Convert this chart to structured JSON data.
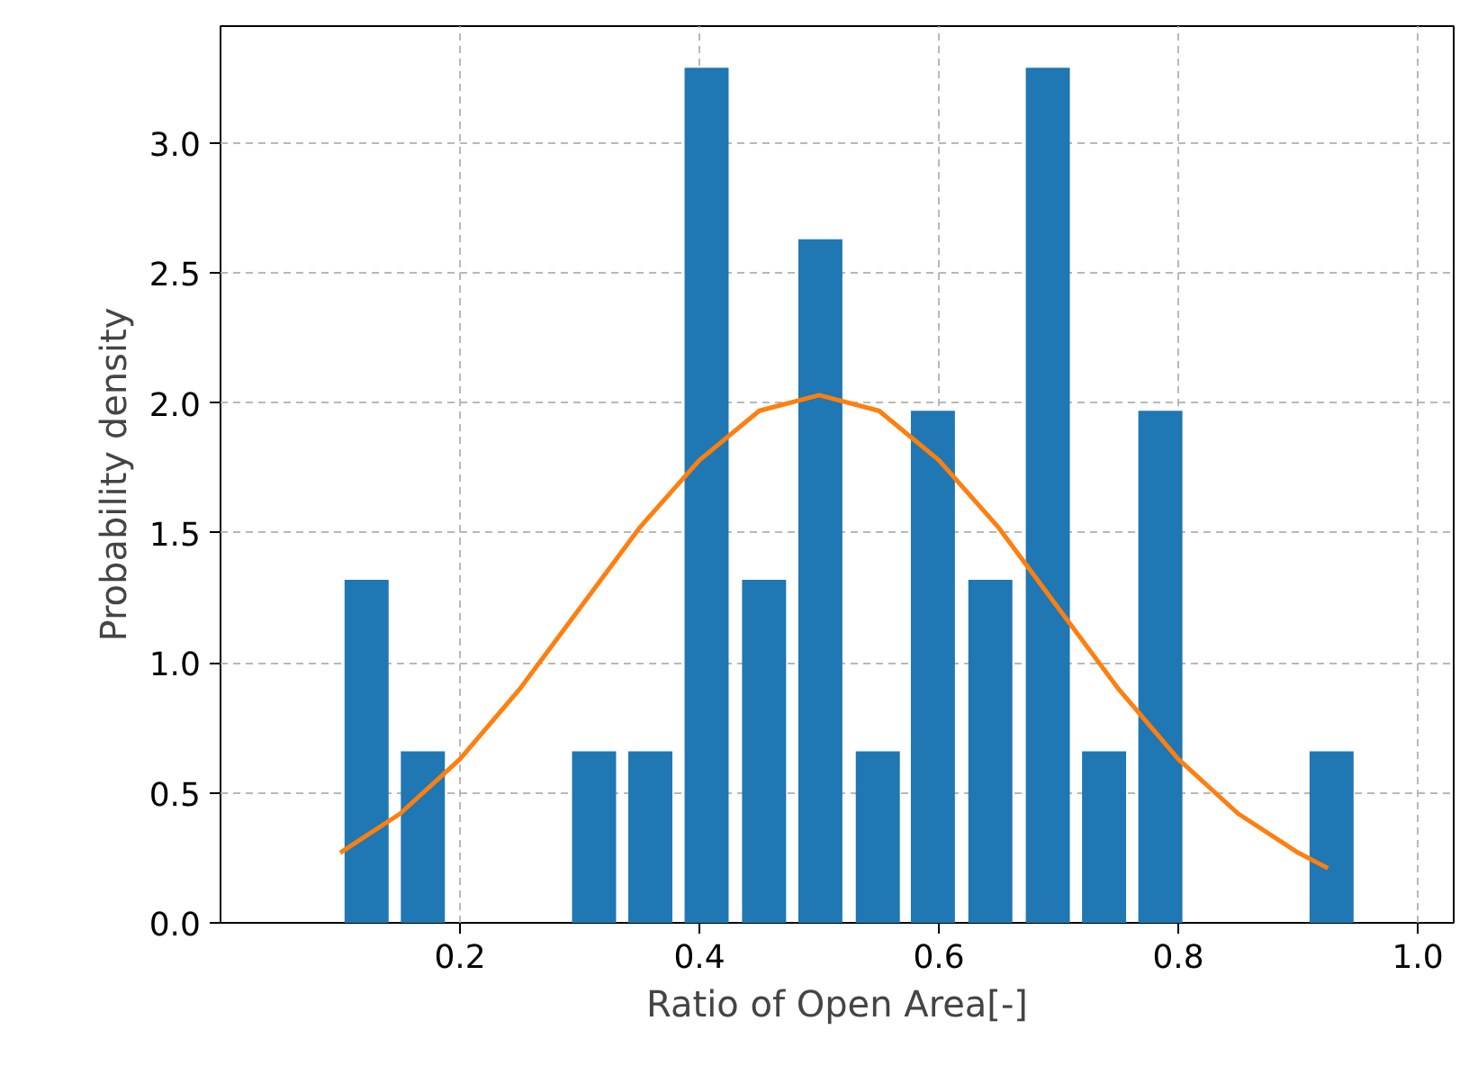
{
  "chart_data": {
    "type": "bar",
    "xlabel": "Ratio of Open Area[-]",
    "ylabel": "Probability density",
    "series": [
      {
        "color": "#1f77b4",
        "x": [
          0.122,
          0.169,
          0.312,
          0.359,
          0.406,
          0.454,
          0.501,
          0.549,
          0.595,
          0.643,
          0.691,
          0.738,
          0.785,
          0.928
        ],
        "values": [
          1.32,
          0.66,
          0.66,
          0.66,
          3.29,
          1.32,
          2.63,
          0.66,
          1.97,
          1.32,
          3.29,
          0.66,
          1.97,
          0.66
        ]
      },
      {
        "type": "line",
        "color": "#ff7f0e",
        "x": [
          0.1,
          0.15,
          0.2,
          0.25,
          0.3,
          0.35,
          0.4,
          0.45,
          0.5,
          0.55,
          0.6,
          0.65,
          0.7,
          0.75,
          0.8,
          0.85,
          0.9,
          0.925
        ],
        "values": [
          0.27,
          0.42,
          0.63,
          0.9,
          1.21,
          1.52,
          1.78,
          1.97,
          2.03,
          1.97,
          1.78,
          1.52,
          1.21,
          0.9,
          0.63,
          0.42,
          0.27,
          0.21
        ]
      }
    ],
    "xlim": [
      0.0,
      1.03
    ],
    "ylim": [
      0,
      3.45
    ],
    "xticks": [
      0.2,
      0.4,
      0.6,
      0.8,
      {
        "value": 1.0,
        "label": "1.0"
      }
    ],
    "yticks": [
      {
        "value": 0,
        "label": "0.0"
      },
      0.5,
      {
        "value": 1.0,
        "label": "1.0"
      },
      1.5,
      {
        "value": 2.0,
        "label": "2.0"
      },
      2.5,
      {
        "value": 3.0,
        "label": "3.0"
      }
    ],
    "grid": true
  }
}
